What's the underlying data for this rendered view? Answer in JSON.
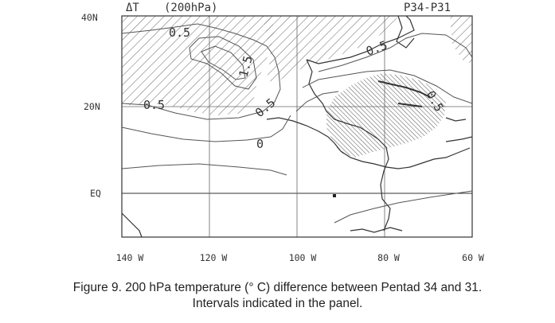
{
  "panel": {
    "variable": "ΔT",
    "level": "(200hPa)",
    "period": "P34-P31"
  },
  "axes": {
    "lat_labels": [
      "40N",
      "20N",
      "EQ"
    ],
    "lon_labels": [
      "140 W",
      "120 W",
      "100 W",
      "80 W",
      "60 W"
    ]
  },
  "contour_labels": [
    "0.5",
    "0.5",
    "1.5",
    "0.5",
    "0.5",
    "0.5",
    "0"
  ],
  "caption": {
    "line1": "Figure 9. 200 hPa temperature (° C)  difference between Pentad 34 and 31.",
    "line2": "Intervals indicated in the panel."
  }
}
